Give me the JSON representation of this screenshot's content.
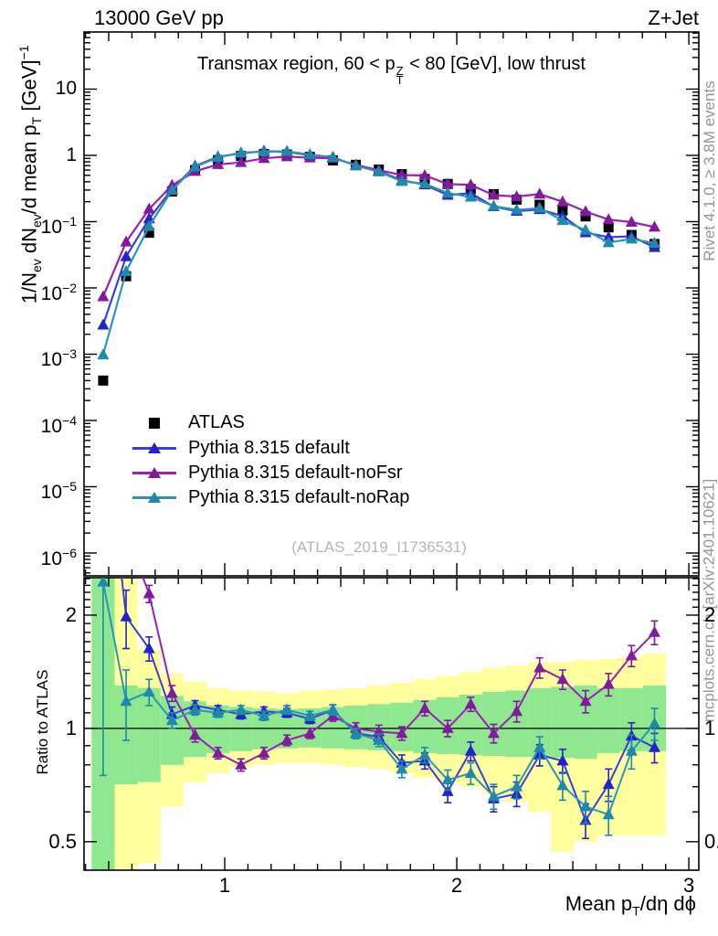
{
  "header": {
    "left": "13000 GeV pp",
    "right": "Z+Jet"
  },
  "title": {
    "pre": "Transmax region, 60 < p",
    "sup": "Z",
    "sub": "T",
    "post": " < 80 [GeV], low thrust"
  },
  "side_notes": {
    "top_right": "Rivet 4.1.0, ≥ 3.8M events",
    "bottom_right": "mcplots.cern.ch [arXiv:2401.10621]"
  },
  "watermark": "(ATLAS_2019_I1736531)",
  "axes": {
    "main_ylabel": {
      "s0": "1/N",
      "s1": "ev",
      "s2": " dN",
      "s3": "ev",
      "s4": "/d mean p",
      "s5": "T",
      "s6": " [GeV]",
      "s7": "−1"
    },
    "ratio_ylabel": "Ratio to ATLAS",
    "xlabel": {
      "pre": "Mean p",
      "sub": "T",
      "post": "/dη dϕ"
    },
    "main_yticks": [
      {
        "t": "10",
        "e": "",
        "v": 10
      },
      {
        "t": "1",
        "e": "",
        "v": 1
      },
      {
        "t": "10",
        "e": "−1",
        "v": 0.1
      },
      {
        "t": "10",
        "e": "−2",
        "v": 0.01
      },
      {
        "t": "10",
        "e": "−3",
        "v": 0.001
      },
      {
        "t": "10",
        "e": "−4",
        "v": 0.0001
      },
      {
        "t": "10",
        "e": "−5",
        "v": 1e-05
      },
      {
        "t": "10",
        "e": "−6",
        "v": 1e-06
      }
    ],
    "ratio_yticks": [
      {
        "t": "2",
        "v": 2
      },
      {
        "t": "1",
        "v": 1
      },
      {
        "t": "0.5",
        "v": 0.5
      }
    ],
    "xticks": [
      {
        "t": "1",
        "v": 1
      },
      {
        "t": "2",
        "v": 2
      },
      {
        "t": "3",
        "v": 3
      }
    ]
  },
  "chart_data": {
    "type": "line",
    "title": "Transmax region, 60 < pT^Z < 80 [GeV], low thrust",
    "xlabel": "Mean pT/dη dϕ",
    "ylabel": "1/Nev dNev/d mean pT [GeV]^-1",
    "ratio_ylabel": "Ratio to ATLAS",
    "xlim": [
      0.3937,
      3.043
    ],
    "ylim_log10": [
      -6.345,
      1.862
    ],
    "ratio_ylim": [
      0.42,
      2.515
    ],
    "grid": false,
    "legend_position": "middle-left",
    "bin_half_width": 0.0495,
    "x": [
      0.476,
      0.575,
      0.674,
      0.773,
      0.872,
      0.971,
      1.07,
      1.169,
      1.268,
      1.367,
      1.466,
      1.565,
      1.664,
      1.763,
      1.862,
      1.961,
      2.06,
      2.159,
      2.258,
      2.357,
      2.456,
      2.555,
      2.654,
      2.753,
      2.852
    ],
    "series": [
      {
        "name": "ATLAS",
        "marker": "square",
        "color": "#000000",
        "values": [
          0.0004,
          0.015,
          0.068,
          0.285,
          0.6,
          0.85,
          0.98,
          1.05,
          1.03,
          0.95,
          0.84,
          0.72,
          0.61,
          0.52,
          0.44,
          0.37,
          0.31,
          0.26,
          0.215,
          0.18,
          0.148,
          0.12,
          0.082,
          0.063,
          0.046
        ]
      },
      {
        "name": "Pythia 8.315 default",
        "marker": "triangle",
        "line_color": "#3d3dd9",
        "marker_color": "#2323c8",
        "ratio": [
          6.9,
          1.98,
          1.63,
          1.09,
          1.15,
          1.12,
          1.09,
          1.11,
          1.1,
          1.06,
          1.12,
          0.97,
          0.95,
          0.81,
          0.82,
          0.68,
          0.87,
          0.65,
          0.67,
          0.85,
          0.82,
          0.57,
          0.71,
          0.955,
          0.89
        ],
        "ratio_err": [
          0.9,
          0.35,
          0.12,
          0.05,
          0.035,
          0.03,
          0.03,
          0.03,
          0.03,
          0.03,
          0.035,
          0.03,
          0.035,
          0.04,
          0.04,
          0.045,
          0.05,
          0.05,
          0.05,
          0.055,
          0.06,
          0.06,
          0.07,
          0.08,
          0.08
        ]
      },
      {
        "name": "Pythia 8.315 default-noFsr",
        "marker": "triangle",
        "line_color": "#9c20b5",
        "marker_color": "#801b9e",
        "ratio": [
          18.5,
          3.3,
          2.28,
          1.24,
          0.96,
          0.86,
          0.8,
          0.86,
          0.93,
          0.97,
          1.08,
          1.0,
          0.98,
          0.97,
          1.13,
          1.0,
          1.16,
          0.97,
          1.11,
          1.45,
          1.35,
          1.18,
          1.31,
          1.56,
          1.8
        ],
        "ratio_err": [
          1.5,
          0.6,
          0.12,
          0.06,
          0.04,
          0.03,
          0.03,
          0.03,
          0.03,
          0.03,
          0.035,
          0.035,
          0.04,
          0.04,
          0.05,
          0.05,
          0.05,
          0.055,
          0.07,
          0.09,
          0.08,
          0.08,
          0.09,
          0.1,
          0.13
        ]
      },
      {
        "name": "Pythia 8.315 default-noRap",
        "marker": "triangle",
        "line_color": "#2a96b6",
        "marker_color": "#1e89ad",
        "ratio": [
          2.45,
          1.18,
          1.25,
          1.05,
          1.12,
          1.1,
          1.12,
          1.08,
          1.12,
          1.08,
          1.12,
          0.97,
          0.93,
          0.78,
          0.85,
          0.73,
          0.76,
          0.66,
          0.7,
          0.89,
          0.705,
          0.62,
          0.59,
          0.87,
          1.03
        ],
        "ratio_err": [
          1.7,
          0.25,
          0.1,
          0.05,
          0.035,
          0.03,
          0.03,
          0.03,
          0.03,
          0.03,
          0.035,
          0.03,
          0.035,
          0.04,
          0.04,
          0.045,
          0.05,
          0.05,
          0.05,
          0.06,
          0.06,
          0.06,
          0.07,
          0.09,
          0.1
        ]
      }
    ],
    "ratio_reference_line": 1.0,
    "ratio_bands": {
      "yellow_color": "#ffff9e",
      "green_color": "#8fe88f",
      "yellow": [
        [
          0.42,
          2.52
        ],
        [
          0.42,
          2.52
        ],
        [
          0.44,
          1.62
        ],
        [
          0.62,
          1.4
        ],
        [
          0.72,
          1.33
        ],
        [
          0.76,
          1.28
        ],
        [
          0.79,
          1.26
        ],
        [
          0.8,
          1.25
        ],
        [
          0.81,
          1.24
        ],
        [
          0.81,
          1.26
        ],
        [
          0.8,
          1.27
        ],
        [
          0.79,
          1.28
        ],
        [
          0.78,
          1.3
        ],
        [
          0.76,
          1.32
        ],
        [
          0.74,
          1.35
        ],
        [
          0.72,
          1.38
        ],
        [
          0.7,
          1.41
        ],
        [
          0.67,
          1.45
        ],
        [
          0.64,
          1.47
        ],
        [
          0.6,
          1.5
        ],
        [
          0.47,
          1.5
        ],
        [
          0.5,
          1.52
        ],
        [
          0.52,
          1.53
        ],
        [
          0.52,
          1.55
        ],
        [
          0.52,
          1.58
        ]
      ],
      "green": [
        [
          0.42,
          2.52
        ],
        [
          0.71,
          1.3
        ],
        [
          0.72,
          1.28
        ],
        [
          0.8,
          1.22
        ],
        [
          0.84,
          1.18
        ],
        [
          0.86,
          1.15
        ],
        [
          0.87,
          1.14
        ],
        [
          0.88,
          1.13
        ],
        [
          0.885,
          1.125
        ],
        [
          0.89,
          1.13
        ],
        [
          0.885,
          1.14
        ],
        [
          0.88,
          1.15
        ],
        [
          0.875,
          1.16
        ],
        [
          0.87,
          1.17
        ],
        [
          0.86,
          1.19
        ],
        [
          0.855,
          1.21
        ],
        [
          0.85,
          1.23
        ],
        [
          0.845,
          1.25
        ],
        [
          0.84,
          1.26
        ],
        [
          0.84,
          1.28
        ],
        [
          0.835,
          1.29
        ],
        [
          0.83,
          1.3
        ],
        [
          0.86,
          1.28
        ],
        [
          0.87,
          1.28
        ],
        [
          0.87,
          1.3
        ]
      ]
    }
  }
}
